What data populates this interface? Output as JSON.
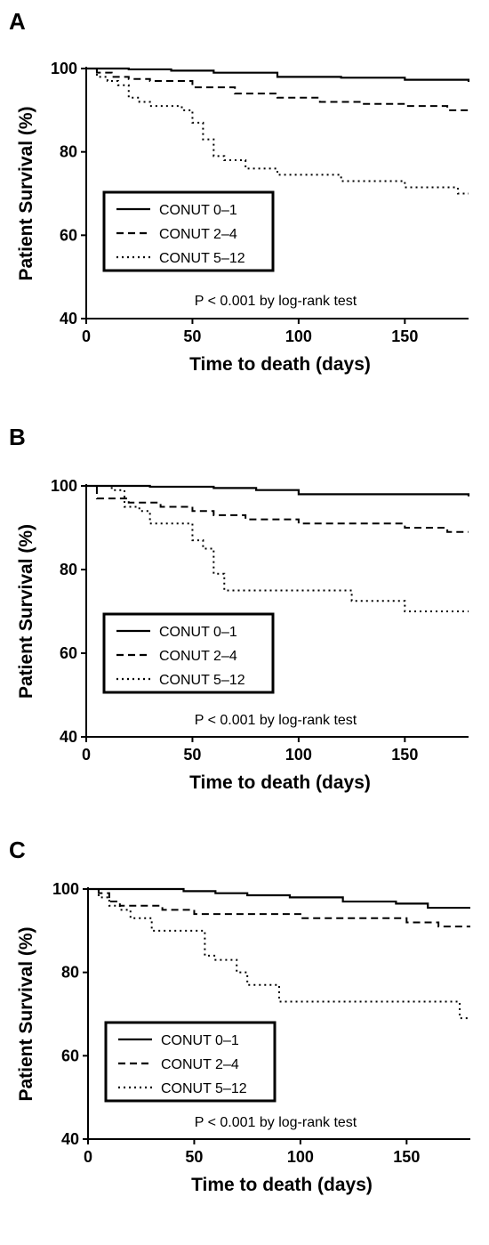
{
  "chart_data": [
    {
      "type": "line",
      "panel_label": "A",
      "xlabel": "Time to death (days)",
      "ylabel": "Patient Survival (%)",
      "xlim": [
        0,
        180
      ],
      "ylim": [
        40,
        100
      ],
      "xticks": [
        0,
        50,
        100,
        150
      ],
      "yticks": [
        40,
        60,
        80,
        100
      ],
      "annotation": "P < 0.001 by log-rank test",
      "legend_position": "center-left",
      "series": [
        {
          "name": "CONUT 0–1",
          "style": "solid",
          "x": [
            0,
            10,
            20,
            40,
            60,
            90,
            120,
            150,
            180
          ],
          "y": [
            100,
            100,
            99.8,
            99.5,
            99,
            98,
            97.8,
            97.3,
            96.8
          ]
        },
        {
          "name": "CONUT 2–4",
          "style": "dashed",
          "x": [
            0,
            5,
            12,
            20,
            30,
            50,
            70,
            90,
            110,
            130,
            150,
            170,
            180
          ],
          "y": [
            100,
            99,
            98,
            97.5,
            97,
            95.5,
            94,
            93,
            92,
            91.5,
            91,
            90,
            90
          ]
        },
        {
          "name": "CONUT 5–12",
          "style": "dotted",
          "x": [
            0,
            5,
            10,
            15,
            20,
            25,
            30,
            45,
            50,
            55,
            60,
            65,
            75,
            90,
            120,
            150,
            175,
            180
          ],
          "y": [
            100,
            98,
            97,
            96,
            93,
            92,
            91,
            90,
            87,
            83,
            79,
            78,
            76,
            74.5,
            73,
            71.5,
            70,
            70
          ]
        }
      ]
    },
    {
      "type": "line",
      "panel_label": "B",
      "xlabel": "Time to death (days)",
      "ylabel": "Patient Survival (%)",
      "xlim": [
        0,
        180
      ],
      "ylim": [
        40,
        100
      ],
      "xticks": [
        0,
        50,
        100,
        150
      ],
      "yticks": [
        40,
        60,
        80,
        100
      ],
      "annotation": "P < 0.001 by log-rank test",
      "legend_position": "center-left",
      "series": [
        {
          "name": "CONUT 0–1",
          "style": "solid",
          "x": [
            0,
            10,
            30,
            60,
            80,
            100,
            130,
            160,
            180
          ],
          "y": [
            100,
            100,
            99.8,
            99.5,
            99,
            98,
            98,
            98,
            97.5
          ]
        },
        {
          "name": "CONUT 2–4",
          "style": "dashed",
          "x": [
            0,
            5,
            15,
            20,
            35,
            50,
            60,
            75,
            100,
            125,
            150,
            170,
            180
          ],
          "y": [
            100,
            97,
            97,
            96,
            95,
            94,
            93,
            92,
            91,
            91,
            90,
            89,
            89
          ]
        },
        {
          "name": "CONUT 5–12",
          "style": "dotted",
          "x": [
            0,
            12,
            18,
            25,
            30,
            45,
            50,
            55,
            60,
            65,
            80,
            110,
            125,
            150,
            180
          ],
          "y": [
            100,
            99,
            95,
            94,
            91,
            91,
            87,
            85,
            79,
            75,
            75,
            75,
            72.5,
            70,
            70
          ]
        }
      ]
    },
    {
      "type": "line",
      "panel_label": "C",
      "xlabel": "Time to death (days)",
      "ylabel": "Patient Survival (%)",
      "xlim": [
        0,
        180
      ],
      "ylim": [
        40,
        100
      ],
      "xticks": [
        0,
        50,
        100,
        150
      ],
      "yticks": [
        40,
        60,
        80,
        100
      ],
      "annotation": "P < 0.001 by log-rank test",
      "legend_position": "center-left",
      "series": [
        {
          "name": "CONUT 0–1",
          "style": "solid",
          "x": [
            0,
            20,
            45,
            60,
            75,
            95,
            120,
            145,
            160,
            180
          ],
          "y": [
            100,
            100,
            99.5,
            99,
            98.5,
            98,
            97,
            96.5,
            95.5,
            95.5
          ]
        },
        {
          "name": "CONUT 2–4",
          "style": "dashed",
          "x": [
            0,
            5,
            10,
            15,
            25,
            35,
            50,
            80,
            100,
            120,
            150,
            165,
            180
          ],
          "y": [
            100,
            99,
            97,
            96,
            96,
            95,
            94,
            94,
            93,
            93,
            92,
            91,
            91
          ]
        },
        {
          "name": "CONUT 5–12",
          "style": "dotted",
          "x": [
            0,
            5,
            10,
            15,
            20,
            30,
            55,
            60,
            70,
            75,
            90,
            120,
            150,
            170,
            175,
            180
          ],
          "y": [
            100,
            98,
            96,
            95,
            93,
            90,
            84,
            83,
            80,
            77,
            73,
            73,
            73,
            73,
            69,
            69
          ]
        }
      ]
    }
  ]
}
